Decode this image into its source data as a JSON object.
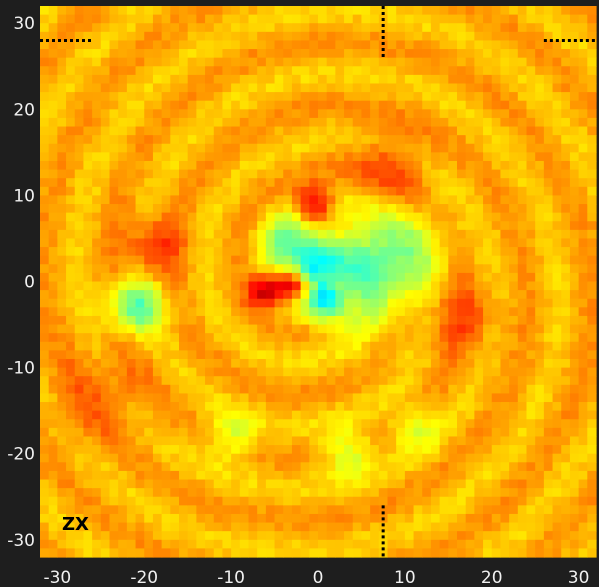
{
  "chart_data": {
    "type": "heatmap",
    "panel_label": "ZX",
    "xlim": [
      -32,
      32
    ],
    "ylim": [
      -32,
      32
    ],
    "xticks": [
      -30,
      -20,
      -10,
      0,
      10,
      20,
      30
    ],
    "yticks": [
      30,
      20,
      10,
      0,
      -10,
      -20,
      -30
    ],
    "grid_resolution": 64,
    "colormap": "jet",
    "background_color": "#1e1e1e",
    "axis_text_color": "#f0f0f0",
    "markers": [
      {
        "orientation": "horizontal",
        "x": [
          -32,
          -26
        ],
        "y": 28
      },
      {
        "orientation": "horizontal",
        "x": [
          26,
          32
        ],
        "y": 28
      },
      {
        "orientation": "vertical",
        "x": 7.5,
        "y": [
          26,
          32
        ]
      },
      {
        "orientation": "vertical",
        "x": 7.5,
        "y": [
          -32,
          -26
        ]
      }
    ],
    "features": [
      {
        "x": -21,
        "y": -3,
        "sigma": 2.2,
        "value": -0.85
      },
      {
        "x": -10,
        "y": -18,
        "sigma": 2.0,
        "value": -0.45
      },
      {
        "x": 3.5,
        "y": -20,
        "sigma": 2.0,
        "value": -0.5
      },
      {
        "x": 11,
        "y": -17,
        "sigma": 1.8,
        "value": -0.45
      },
      {
        "x": 5,
        "y": 1,
        "sigma": 4.5,
        "value": -0.6
      },
      {
        "x": -1,
        "y": 2,
        "sigma": 2.5,
        "value": -0.8
      },
      {
        "x": 1,
        "y": -2.5,
        "sigma": 1.5,
        "value": -0.75
      },
      {
        "x": -3.5,
        "y": 5,
        "sigma": 2.0,
        "value": -0.55
      },
      {
        "x": 9,
        "y": 3,
        "sigma": 3.5,
        "value": -0.45
      },
      {
        "x": -6,
        "y": -1,
        "sigma": 1.4,
        "value": 0.95
      },
      {
        "x": -3,
        "y": -0.5,
        "sigma": 1.2,
        "value": 1.0
      },
      {
        "x": -0.5,
        "y": 9,
        "sigma": 1.5,
        "value": 0.85
      },
      {
        "x": -19,
        "y": 4,
        "sigma": 2.5,
        "value": 0.45
      },
      {
        "x": 8,
        "y": 13,
        "sigma": 3.0,
        "value": 0.35
      },
      {
        "x": 16,
        "y": -4,
        "sigma": 3.0,
        "value": 0.35
      },
      {
        "x": -25,
        "y": -13,
        "sigma": 4.0,
        "value": 0.25
      }
    ]
  }
}
